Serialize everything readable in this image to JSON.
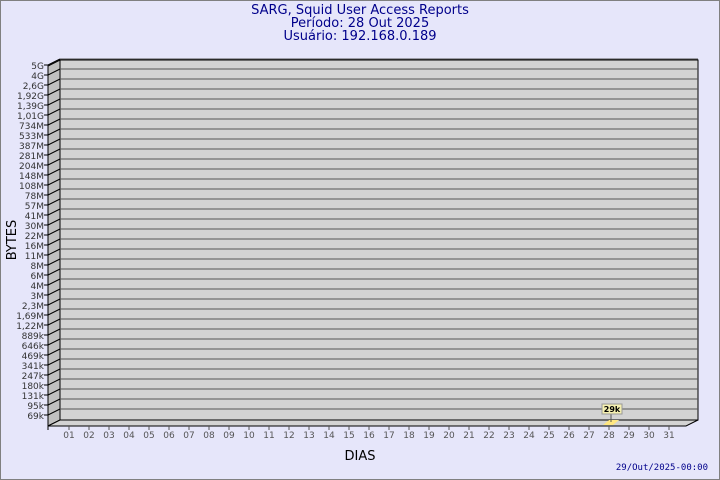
{
  "chart_data": {
    "type": "bar",
    "title": "SARG, Squid User Access Reports",
    "subtitle_period": "Período: 28 Out 2025",
    "subtitle_user": "Usuário: 192.168.0.189",
    "xlabel": "DIAS",
    "ylabel": "BYTES",
    "y_scale": "log",
    "y_tick_labels": [
      "5G",
      "4G",
      "2,6G",
      "1,92G",
      "1,39G",
      "1,01G",
      "734M",
      "533M",
      "387M",
      "281M",
      "204M",
      "148M",
      "108M",
      "78M",
      "57M",
      "41M",
      "30M",
      "22M",
      "16M",
      "11M",
      "8M",
      "6M",
      "4M",
      "3M",
      "2,3M",
      "1,69M",
      "1,22M",
      "889k",
      "646k",
      "469k",
      "341k",
      "247k",
      "180k",
      "131k",
      "95k",
      "69k"
    ],
    "categories": [
      "01",
      "02",
      "03",
      "04",
      "05",
      "06",
      "07",
      "08",
      "09",
      "10",
      "11",
      "12",
      "13",
      "14",
      "15",
      "16",
      "17",
      "18",
      "19",
      "20",
      "21",
      "22",
      "23",
      "24",
      "25",
      "26",
      "27",
      "28",
      "29",
      "30",
      "31"
    ],
    "bars": [
      {
        "day": "28",
        "value_label": "29k",
        "value": 29000
      }
    ],
    "grid": true,
    "colors": {
      "background": "#e6e6fa",
      "plot": "#d3d3d3",
      "bar": "#ffe680",
      "text": "#00008b"
    },
    "footer": "29/Out/2025-00:00"
  }
}
